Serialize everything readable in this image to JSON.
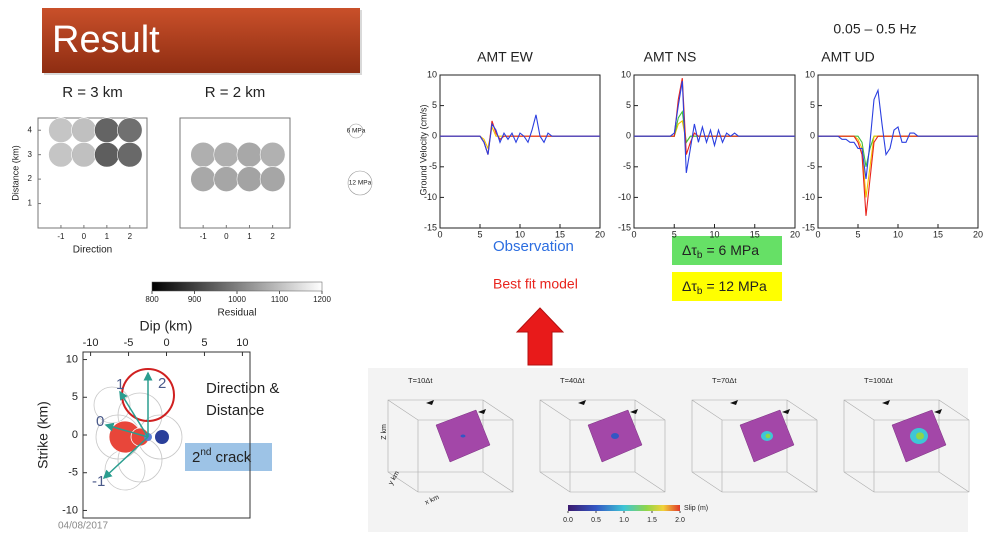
{
  "title": "Result",
  "residual_panel": {
    "plots": [
      {
        "title": "R = 3 km",
        "xlabel": "Direction",
        "ylabel": "Distance (km)",
        "xlim": [
          -2,
          2.75
        ],
        "ylim": [
          0,
          4.5
        ],
        "xticks": [
          -1,
          0,
          1,
          2
        ],
        "yticks": [
          1,
          2,
          3,
          4
        ],
        "circles": [
          {
            "x": -1,
            "y": 4,
            "residual": 1100
          },
          {
            "x": 0,
            "y": 4,
            "residual": 1090
          },
          {
            "x": 1,
            "y": 4,
            "residual": 930
          },
          {
            "x": 2,
            "y": 4,
            "residual": 950
          },
          {
            "x": -1,
            "y": 3,
            "residual": 1100
          },
          {
            "x": 0,
            "y": 3,
            "residual": 1090
          },
          {
            "x": 1,
            "y": 3,
            "residual": 920
          },
          {
            "x": 2,
            "y": 3,
            "residual": 940
          }
        ]
      },
      {
        "title": "R = 2 km",
        "xlim": [
          -2,
          2.75
        ],
        "ylim": [
          0,
          4.5
        ],
        "xticks": [
          -1,
          0,
          1,
          2
        ],
        "circles": [
          {
            "x": -1,
            "y": 3,
            "residual": 1060
          },
          {
            "x": 0,
            "y": 3,
            "residual": 1060
          },
          {
            "x": 1,
            "y": 3,
            "residual": 1050
          },
          {
            "x": 2,
            "y": 3,
            "residual": 1065
          },
          {
            "x": -1,
            "y": 2,
            "residual": 1050
          },
          {
            "x": 0,
            "y": 2,
            "residual": 1045
          },
          {
            "x": 1,
            "y": 2,
            "residual": 1040
          },
          {
            "x": 2,
            "y": 2,
            "residual": 1045
          }
        ]
      }
    ],
    "legend": [
      "6 MPa",
      "12 MPa"
    ],
    "colorbar": {
      "label": "Residual",
      "lim": [
        800,
        1200
      ],
      "ticks": [
        800,
        900,
        1000,
        1100,
        1200
      ]
    }
  },
  "crack_map": {
    "xlabel": "Dip (km)",
    "ylabel": "Strike (km)",
    "xlim": [
      -11,
      11
    ],
    "ylim": [
      -11,
      11
    ],
    "xticks": [
      -10,
      -5,
      0,
      5,
      10
    ],
    "yticks": [
      -10,
      -5,
      0,
      5,
      10
    ],
    "direction_labels": [
      "0",
      "1",
      "2",
      "-1"
    ],
    "note": [
      "Direction &",
      "Distance"
    ],
    "crack_label": [
      "2",
      "nd",
      "crack"
    ]
  },
  "date": "04/08/2017",
  "waveforms": {
    "band": "0.05 – 0.5 Hz",
    "ylabel": "Ground Velocity (cm/s)",
    "t": [
      0,
      0.5,
      1,
      1.5,
      2,
      2.5,
      3,
      3.5,
      4,
      4.5,
      5,
      5.5,
      6,
      6.5,
      7,
      7.5,
      8,
      8.5,
      9,
      9.5,
      10,
      10.5,
      11,
      11.5,
      12,
      12.5,
      13,
      13.5,
      14,
      14.5,
      15,
      15.5,
      16,
      16.5,
      17,
      17.5,
      18,
      18.5,
      19,
      19.5,
      20
    ],
    "xlim": [
      0,
      20
    ],
    "ylim": [
      -15,
      10
    ],
    "xticks": [
      0,
      5,
      10,
      15,
      20
    ],
    "yticks": [
      -15,
      -10,
      -5,
      0,
      5,
      10
    ],
    "panels": [
      {
        "title": "AMT EW",
        "series": [
          {
            "color": "#f2c200",
            "values": [
              0,
              0,
              0,
              0,
              0,
              0,
              0,
              0,
              0,
              0,
              0,
              -0.5,
              -2,
              1.5,
              0,
              0,
              0,
              0,
              0,
              0,
              0,
              0,
              0,
              0,
              0,
              0,
              0,
              0,
              0,
              0,
              0,
              0,
              0,
              0,
              0,
              0,
              0,
              0,
              0,
              0,
              0
            ]
          },
          {
            "color": "#e8231c",
            "values": [
              0,
              0,
              0,
              0,
              0,
              0,
              0,
              0,
              0,
              0,
              0,
              -1,
              -3,
              2.5,
              0.5,
              -0.5,
              0,
              0,
              0,
              0,
              0,
              0,
              0,
              0,
              0,
              0,
              0,
              0,
              0,
              0,
              0,
              0,
              0,
              0,
              0,
              0,
              0,
              0,
              0,
              0,
              0
            ]
          },
          {
            "color": "#2b3fe0",
            "values": [
              0,
              0,
              0,
              0,
              0,
              0,
              0,
              0,
              0,
              0,
              0,
              -1,
              -3,
              2,
              1,
              -1,
              0.5,
              -0.5,
              0.5,
              -1,
              0.5,
              0,
              -1,
              1,
              3.5,
              0,
              -1,
              0.5,
              0,
              0,
              0,
              0,
              0,
              0,
              0,
              0,
              0,
              0,
              0,
              0,
              0
            ]
          }
        ]
      },
      {
        "title": "AMT NS",
        "series": [
          {
            "color": "#f2c200",
            "values": [
              0,
              0,
              0,
              0,
              0,
              0,
              0,
              0,
              0,
              0,
              0,
              2,
              2.5,
              -1,
              0,
              0,
              0,
              0,
              0,
              0,
              0,
              0,
              0,
              0,
              0,
              0,
              0,
              0,
              0,
              0,
              0,
              0,
              0,
              0,
              0,
              0,
              0,
              0,
              0,
              0,
              0
            ]
          },
          {
            "color": "#3fbf3f",
            "values": [
              0,
              0,
              0,
              0,
              0,
              0,
              0,
              0,
              0,
              0,
              0,
              3,
              4,
              -1,
              0,
              0,
              0,
              0,
              0,
              0,
              0,
              0,
              0,
              0,
              0,
              0,
              0,
              0,
              0,
              0,
              0,
              0,
              0,
              0,
              0,
              0,
              0,
              0,
              0,
              0,
              0
            ]
          },
          {
            "color": "#e8231c",
            "values": [
              0,
              0,
              0,
              0,
              0,
              0,
              0,
              0,
              0,
              0,
              0,
              6,
              9.5,
              -3,
              -1,
              0.5,
              0,
              0,
              0,
              0,
              0,
              0,
              0,
              0,
              0,
              0,
              0,
              0,
              0,
              0,
              0,
              0,
              0,
              0,
              0,
              0,
              0,
              0,
              0,
              0,
              0
            ]
          },
          {
            "color": "#2b3fe0",
            "values": [
              0,
              0,
              0,
              0,
              0,
              0,
              0,
              0,
              0,
              0,
              0.5,
              5,
              9,
              -6,
              -2,
              2,
              -1,
              1.5,
              -1,
              1,
              -1.5,
              1,
              -1,
              0.5,
              0,
              0.5,
              0,
              0,
              0,
              0,
              0,
              0,
              0,
              0,
              0,
              0,
              0,
              0,
              0,
              0,
              0
            ]
          }
        ]
      },
      {
        "title": "AMT UD",
        "series": [
          {
            "color": "#3fbf3f",
            "values": [
              0,
              0,
              0,
              0,
              0,
              0,
              0,
              0,
              0,
              0,
              0,
              -1,
              -5,
              -2,
              0,
              0,
              0,
              0,
              0,
              0,
              0,
              0,
              0,
              0,
              0,
              0,
              0,
              0,
              0,
              0,
              0,
              0,
              0,
              0,
              0,
              0,
              0,
              0,
              0,
              0,
              0
            ]
          },
          {
            "color": "#f2c200",
            "values": [
              0,
              0,
              0,
              0,
              0,
              0,
              0,
              0,
              0,
              0,
              -0.5,
              -2,
              -10,
              -5,
              0,
              0,
              0,
              0,
              0,
              0,
              0,
              0,
              0,
              0,
              0,
              0,
              0,
              0,
              0,
              0,
              0,
              0,
              0,
              0,
              0,
              0,
              0,
              0,
              0,
              0,
              0
            ]
          },
          {
            "color": "#e8231c",
            "values": [
              0,
              0,
              0,
              0,
              0,
              0,
              0,
              0,
              0,
              0,
              -1,
              -3,
              -13,
              -7,
              -1,
              0,
              0,
              0,
              0,
              0,
              0,
              0,
              0,
              0,
              0,
              0,
              0,
              0,
              0,
              0,
              0,
              0,
              0,
              0,
              0,
              0,
              0,
              0,
              0,
              0,
              0
            ]
          },
          {
            "color": "#2b3fe0",
            "values": [
              0,
              0,
              0,
              0,
              0,
              0,
              -0.5,
              -0.5,
              -1,
              -1,
              -2,
              -2,
              -7,
              -1,
              6,
              7.5,
              2,
              -3,
              -2,
              1,
              1.5,
              -1,
              -1,
              0.5,
              0.5,
              0,
              0,
              0,
              0,
              0,
              0,
              0,
              0,
              0,
              0,
              0,
              0,
              0,
              0,
              0,
              0
            ]
          }
        ]
      }
    ]
  },
  "legend": {
    "observation": "Observation",
    "best_fit": "Best fit model",
    "models": [
      {
        "symbol": "Δτ",
        "subscript": "b",
        "value": "= 6 MPa"
      },
      {
        "symbol": "Δτ",
        "subscript": "b",
        "value": "= 12 MPa"
      }
    ]
  },
  "snapshots": {
    "frames": [
      "T=10Δt",
      "T=40Δt",
      "T=70Δt",
      "T=100Δt"
    ],
    "axis_labels": {
      "z": "Z km",
      "x": "x km",
      "y": "y km"
    },
    "colorbar": {
      "label": "Slip (m)",
      "lim": [
        0,
        2
      ],
      "ticks": [
        {
          "value": 0,
          "label": "0.0"
        },
        0.5,
        {
          "value": 1,
          "label": "1.0"
        },
        1.5,
        {
          "value": 2,
          "label": "2.0"
        }
      ]
    }
  }
}
